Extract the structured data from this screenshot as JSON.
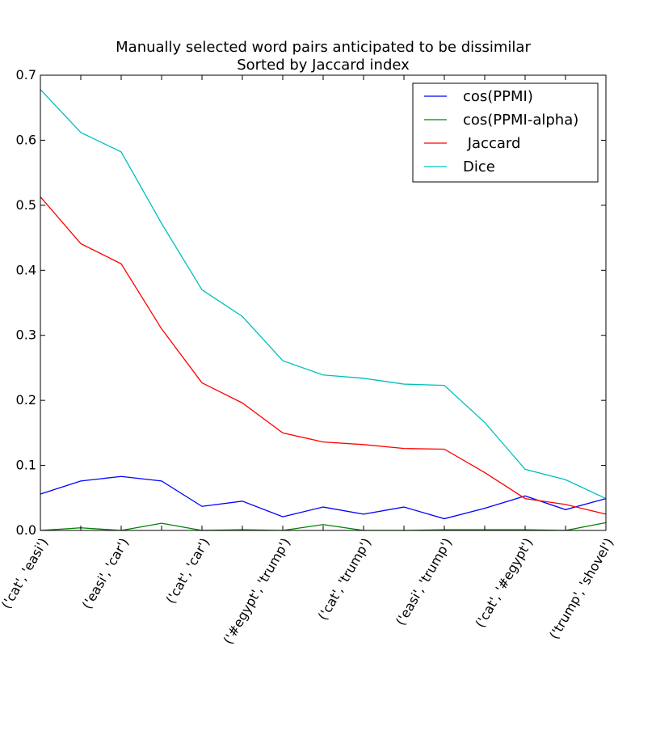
{
  "chart_data": {
    "type": "line",
    "title_lines": [
      "Manually selected word pairs anticipated to be dissimilar",
      "Sorted by Jaccard index"
    ],
    "xlabel": "",
    "ylabel": "",
    "ylim": [
      0,
      0.7
    ],
    "y_ticks": [
      "0.0",
      "0.1",
      "0.2",
      "0.3",
      "0.4",
      "0.5",
      "0.6",
      "0.7"
    ],
    "x_tick_labels": [
      "('cat', 'easi')",
      "('easi', 'car')",
      "('cat', 'car')",
      "('#egypt', 'trump')",
      "('cat', 'trump')",
      "('easi', 'trump')",
      "('cat', '#egypt')",
      "('trump', 'shovel')"
    ],
    "x_tick_positions": [
      0,
      2,
      4,
      6,
      8,
      10,
      12,
      14
    ],
    "xlim": [
      0,
      14
    ],
    "grid": false,
    "legend_position": "top-right",
    "series": [
      {
        "name": "cos(PPMI)",
        "color": "#0000ff",
        "x": [
          0,
          1,
          2,
          3,
          4,
          5,
          6,
          7,
          8,
          9,
          10,
          11,
          12,
          13,
          14
        ],
        "values": [
          0.056,
          0.076,
          0.083,
          0.076,
          0.037,
          0.045,
          0.021,
          0.036,
          0.025,
          0.036,
          0.018,
          0.034,
          0.053,
          0.032,
          0.049
        ]
      },
      {
        "name": "cos(PPMI-alpha)",
        "color": "#008000",
        "x": [
          0,
          1,
          2,
          3,
          4,
          5,
          6,
          7,
          8,
          9,
          10,
          11,
          12,
          13,
          14
        ],
        "values": [
          0.0,
          0.004,
          0.0,
          0.011,
          0.0,
          0.001,
          0.0,
          0.009,
          0.0,
          0.0,
          0.001,
          0.001,
          0.001,
          0.0,
          0.012
        ]
      },
      {
        "name": " Jaccard",
        "color": "#ff0000",
        "x": [
          0,
          1,
          2,
          3,
          4,
          5,
          6,
          7,
          8,
          9,
          10,
          11,
          12,
          13,
          14
        ],
        "values": [
          0.513,
          0.441,
          0.41,
          0.31,
          0.227,
          0.196,
          0.15,
          0.136,
          0.132,
          0.126,
          0.125,
          0.089,
          0.049,
          0.04,
          0.025
        ]
      },
      {
        "name": "Dice",
        "color": "#00bfbf",
        "x": [
          0,
          1,
          2,
          3,
          4,
          5,
          6,
          7,
          8,
          9,
          10,
          11,
          12,
          13,
          14
        ],
        "values": [
          0.678,
          0.612,
          0.582,
          0.472,
          0.37,
          0.329,
          0.261,
          0.239,
          0.234,
          0.225,
          0.223,
          0.166,
          0.094,
          0.078,
          0.049
        ]
      }
    ]
  }
}
